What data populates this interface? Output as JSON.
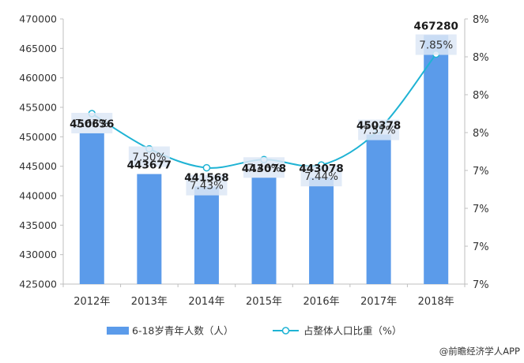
{
  "chart_data": {
    "type": "bar",
    "categories": [
      "2012年",
      "2013年",
      "2014年",
      "2015年",
      "2016年",
      "2017年",
      "2018年"
    ],
    "series": [
      {
        "name": "6-18岁青年人数（人）",
        "type": "bar",
        "axis": "left",
        "values": [
          450636,
          443677,
          441568,
          443078,
          443078,
          450378,
          467280
        ],
        "data_labels": [
          "450636",
          "443677",
          "441568",
          "443078",
          "443078",
          "450378",
          "467280"
        ],
        "color": "#5B9BEA"
      },
      {
        "name": "占整体人口比重（%）",
        "type": "line",
        "axis": "right",
        "smooth": true,
        "values": [
          7.63,
          7.5,
          7.43,
          7.46,
          7.44,
          7.57,
          7.85
        ],
        "data_labels": [
          "7.63%",
          "7.50%",
          "7.43%",
          "7.46%",
          "7.44%",
          "7.57%",
          "7.85%"
        ],
        "color": "#1FB3D4"
      }
    ],
    "y_left": {
      "ylim": [
        425000,
        470000
      ],
      "ticks": [
        425000,
        430000,
        435000,
        440000,
        445000,
        450000,
        455000,
        460000,
        465000,
        470000
      ],
      "tick_labels": [
        "425000",
        "430000",
        "435000",
        "440000",
        "445000",
        "450000",
        "455000",
        "460000",
        "465000",
        "470000"
      ]
    },
    "y_right": {
      "ylim": [
        7.0,
        7.98
      ],
      "tick_labels": [
        "7%",
        "7%",
        "7%",
        "7%",
        "8%",
        "8%",
        "8%",
        "8%"
      ]
    },
    "grid": false,
    "legend": "bottom-center",
    "source": "@前瞻经济学人APP"
  },
  "colors": {
    "bar": "#5B9BEA",
    "line": "#1FB3D4",
    "axis": "#bfbfbf",
    "label_box": "#dde7f6",
    "text": "#333333"
  }
}
